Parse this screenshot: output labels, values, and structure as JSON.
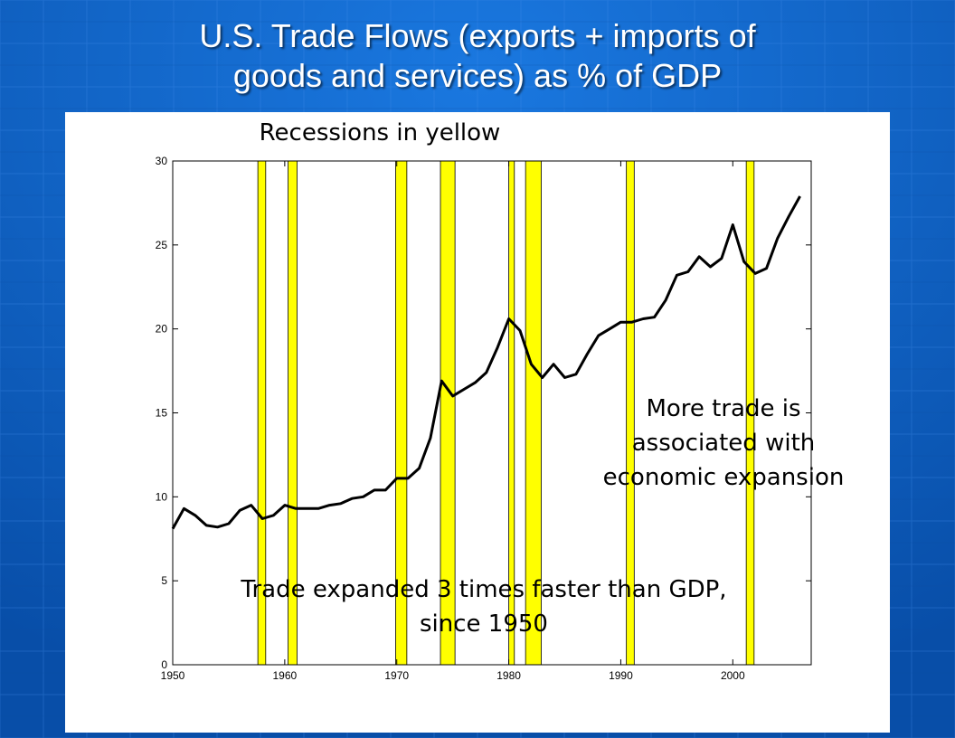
{
  "slide": {
    "title_line1": "U.S. Trade Flows (exports + imports of",
    "title_line2": "goods and services) as % of GDP",
    "background_color": "#0a5cc4"
  },
  "chart_data": {
    "type": "line",
    "title": "Recessions in yellow",
    "xlabel": "",
    "ylabel": "",
    "xlim": [
      1950,
      2007
    ],
    "ylim": [
      0,
      30
    ],
    "xticks": [
      1950,
      1960,
      1970,
      1980,
      1990,
      2000
    ],
    "yticks": [
      0,
      5,
      10,
      15,
      20,
      25,
      30
    ],
    "grid": false,
    "line_color": "#000000",
    "recession_color": "#ffff00",
    "recessions": [
      [
        1957.6,
        1958.3
      ],
      [
        1960.3,
        1961.1
      ],
      [
        1969.9,
        1970.9
      ],
      [
        1973.9,
        1975.2
      ],
      [
        1980.0,
        1980.5
      ],
      [
        1981.5,
        1982.9
      ],
      [
        1990.5,
        1991.2
      ],
      [
        2001.2,
        2001.9
      ]
    ],
    "series": [
      {
        "x": [
          1950,
          1951,
          1952,
          1953,
          1954,
          1955,
          1956,
          1957,
          1958,
          1959,
          1960,
          1961,
          1962,
          1963,
          1964,
          1965,
          1966,
          1967,
          1968,
          1969,
          1970,
          1971,
          1972,
          1973,
          1974,
          1975,
          1976,
          1977,
          1978,
          1979,
          1980,
          1981,
          1982,
          1983,
          1984,
          1985,
          1986,
          1987,
          1988,
          1989,
          1990,
          1991,
          1992,
          1993,
          1994,
          1995,
          1996,
          1997,
          1998,
          1999,
          2000,
          2001,
          2002,
          2003,
          2004,
          2005,
          2006
        ],
        "y": [
          8.1,
          9.3,
          8.9,
          8.3,
          8.2,
          8.4,
          9.2,
          9.5,
          8.7,
          8.9,
          9.5,
          9.3,
          9.3,
          9.3,
          9.5,
          9.6,
          9.9,
          10.0,
          10.4,
          10.4,
          11.1,
          11.1,
          11.7,
          13.5,
          16.9,
          16.0,
          16.4,
          16.8,
          17.4,
          18.9,
          20.6,
          19.9,
          17.9,
          17.1,
          17.9,
          17.1,
          17.3,
          18.5,
          19.6,
          20.0,
          20.4,
          20.4,
          20.6,
          20.7,
          21.7,
          23.2,
          23.4,
          24.3,
          23.7,
          24.2,
          26.2,
          24.0,
          23.3,
          23.6,
          25.4,
          26.7,
          27.9
        ]
      }
    ],
    "annotations": [
      {
        "text_line1": "More trade is",
        "text_line2": "associated with",
        "text_line3": "economic expansion"
      },
      {
        "text_line1": "Trade expanded 3 times faster than GDP,",
        "text_line2": "since 1950"
      }
    ]
  }
}
